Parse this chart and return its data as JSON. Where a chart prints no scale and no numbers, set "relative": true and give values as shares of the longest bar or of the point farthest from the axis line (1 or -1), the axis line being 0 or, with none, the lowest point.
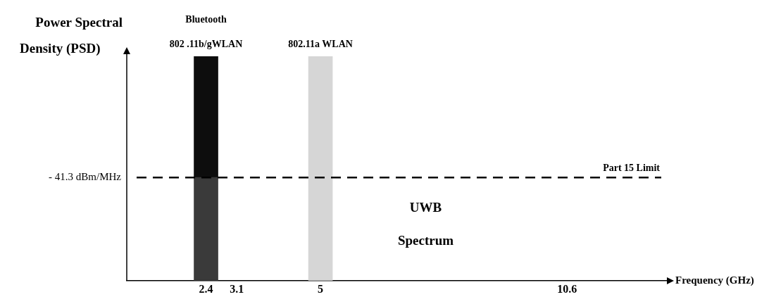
{
  "chart_data": {
    "type": "bar",
    "stacked": true,
    "relative": true,
    "x": [
      2.4,
      5
    ],
    "xlim": [
      0.6,
      12.9
    ],
    "xticks": [
      2.4,
      3.1,
      5,
      10.6
    ],
    "series": [
      {
        "colors": [
          "#3a3a3a",
          "#d6d6d6"
        ],
        "values": [
          0.46,
          1
        ]
      },
      {
        "color": "#0d0d0d",
        "values": [
          0.54,
          null
        ]
      }
    ],
    "ref_lines": [
      {
        "axis": "y",
        "value": 0.46,
        "label": "Part 15 Limit",
        "color": "#000000",
        "line_style": "dashed"
      }
    ],
    "annotations": [
      "Power Spectral",
      "Density (PSD)",
      "- 41.3 dBm/MHz",
      "UWB",
      "Spectrum",
      "Frequency (GHz)",
      {
        "text": "802 .11b/gWLAN",
        "x": 2.4,
        "y": 1
      },
      "Bluetooth",
      {
        "text": "802.11a WLAN",
        "x": 5,
        "y": 1
      }
    ],
    "grid": false,
    "legend": false
  }
}
